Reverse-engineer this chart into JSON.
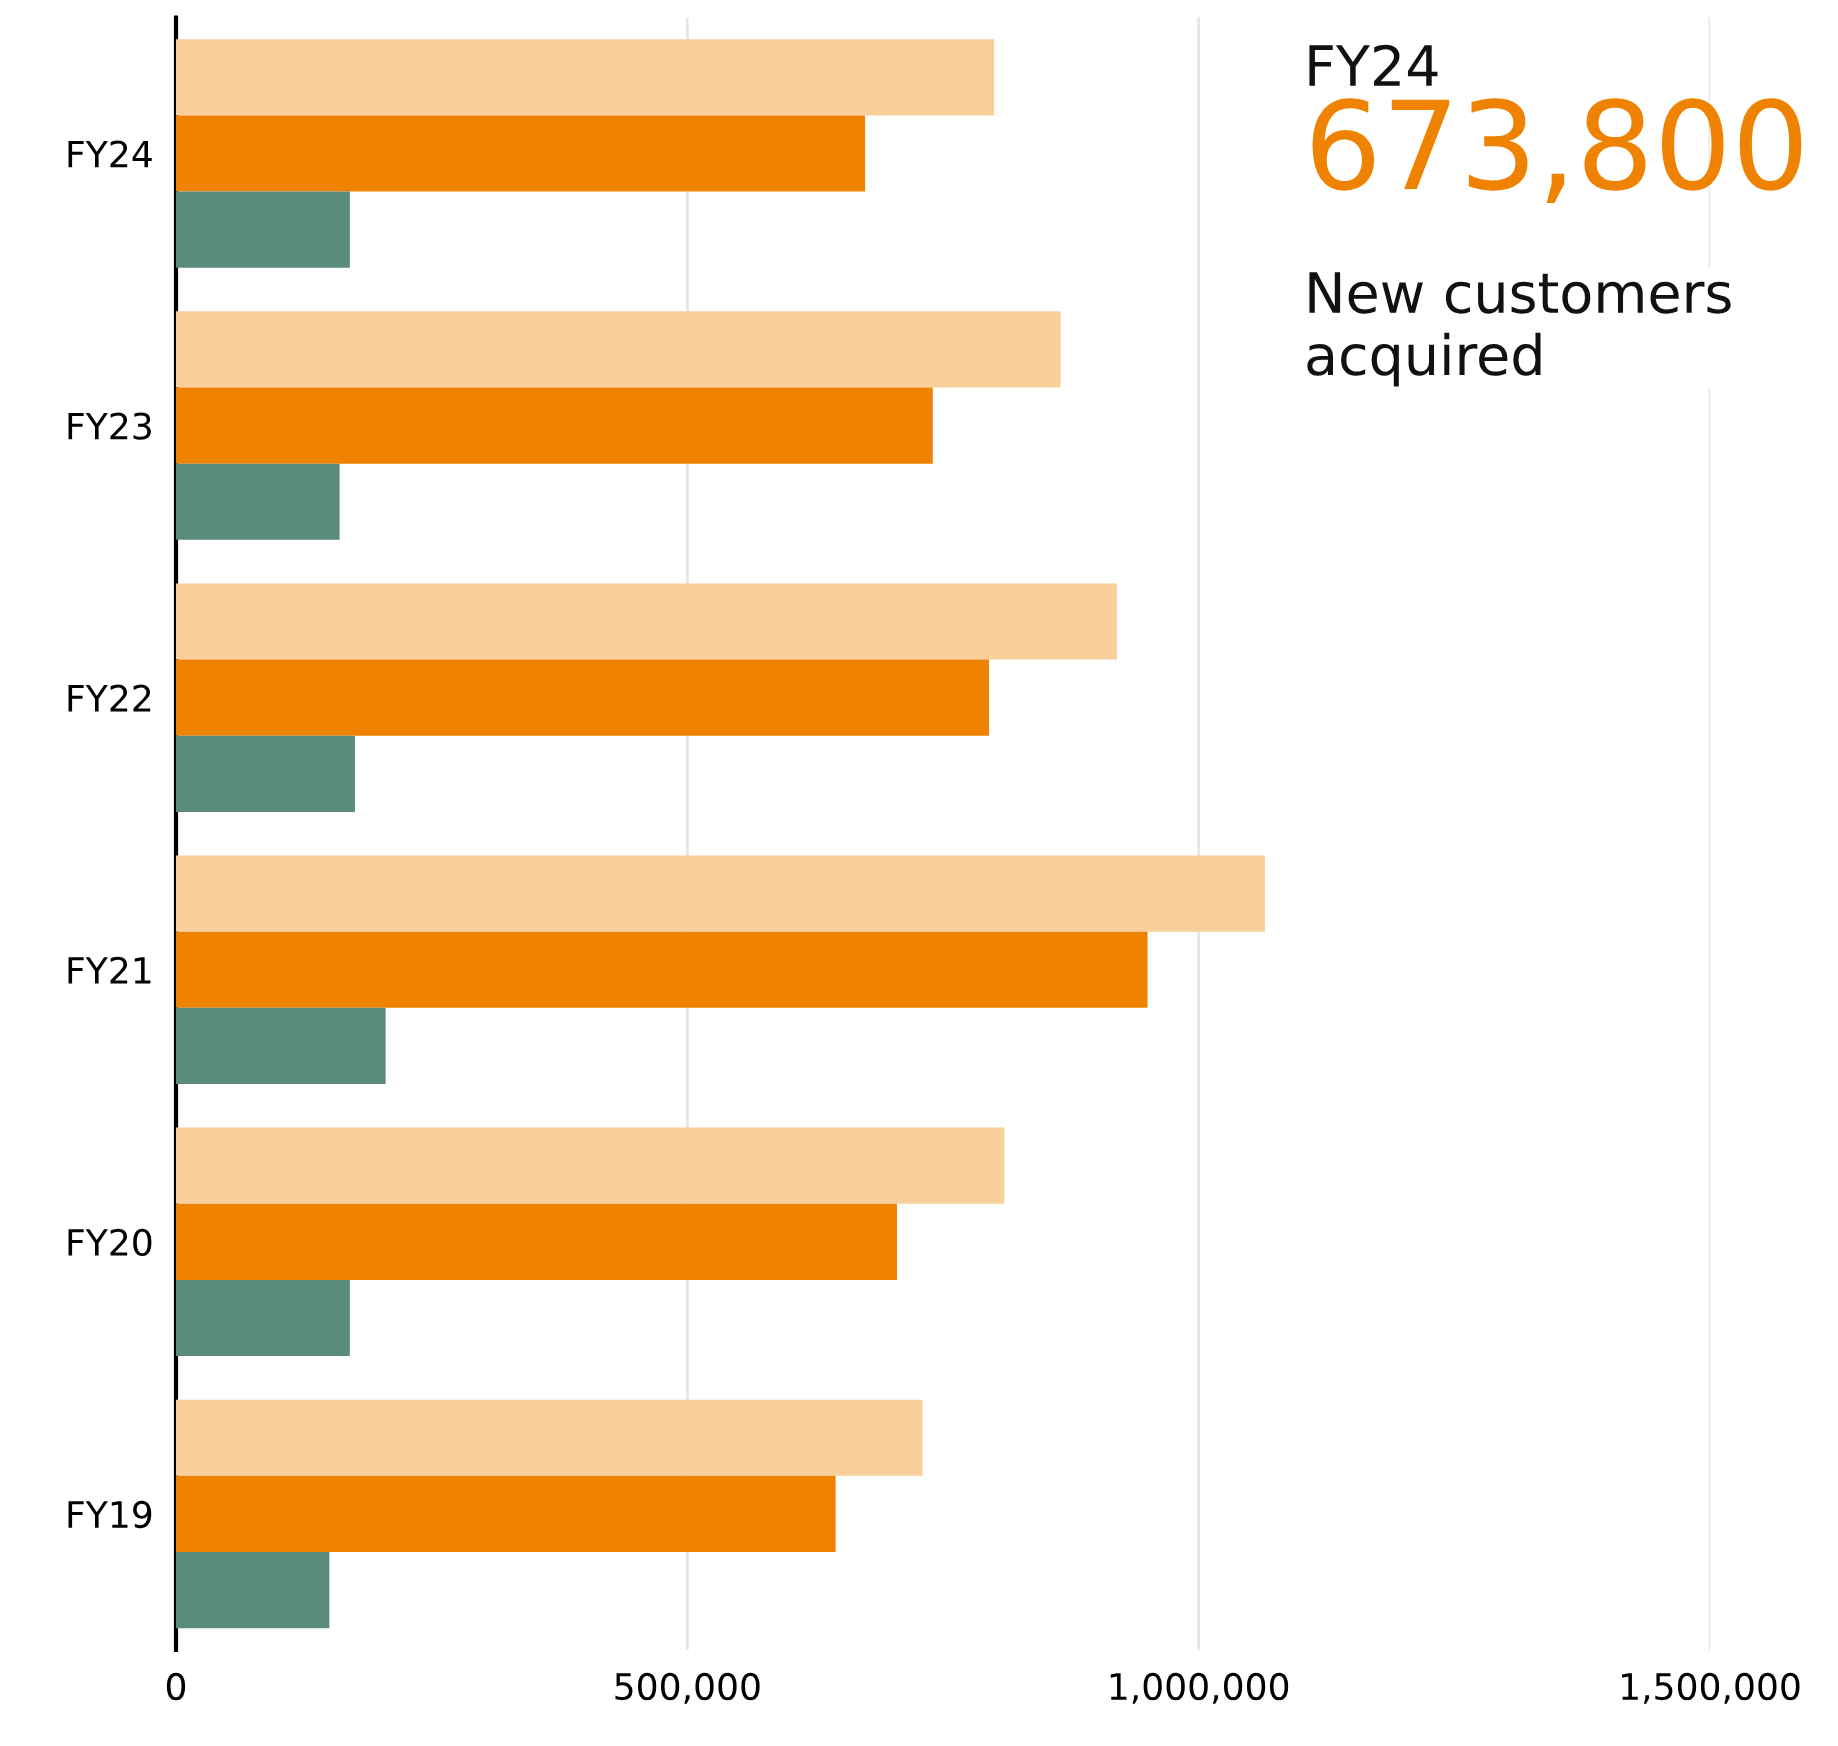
{
  "chart_data": {
    "type": "bar",
    "orientation": "horizontal",
    "categories": [
      "FY24",
      "FY23",
      "FY22",
      "FY21",
      "FY20",
      "FY19"
    ],
    "series": [
      {
        "color": "#f9cf9c",
        "values": [
          800000,
          865000,
          920000,
          1065000,
          810000,
          730000
        ]
      },
      {
        "color": "#ef8200",
        "values": [
          673800,
          740000,
          795000,
          950000,
          705000,
          645000
        ]
      },
      {
        "color": "#5b8c7a",
        "values": [
          170000,
          160000,
          175000,
          205000,
          170000,
          150000
        ]
      }
    ],
    "xlim": [
      0,
      1500000
    ],
    "xticks": [
      {
        "value": 0,
        "label": "0"
      },
      {
        "value": 500000,
        "label": "500,000"
      },
      {
        "value": 1000000,
        "label": "1,000,000"
      },
      {
        "value": 1500000,
        "label": "1,500,000"
      }
    ],
    "grid": "x",
    "legend": false,
    "annotations": [
      "FY24",
      "673,800",
      "New customers acquired"
    ]
  }
}
